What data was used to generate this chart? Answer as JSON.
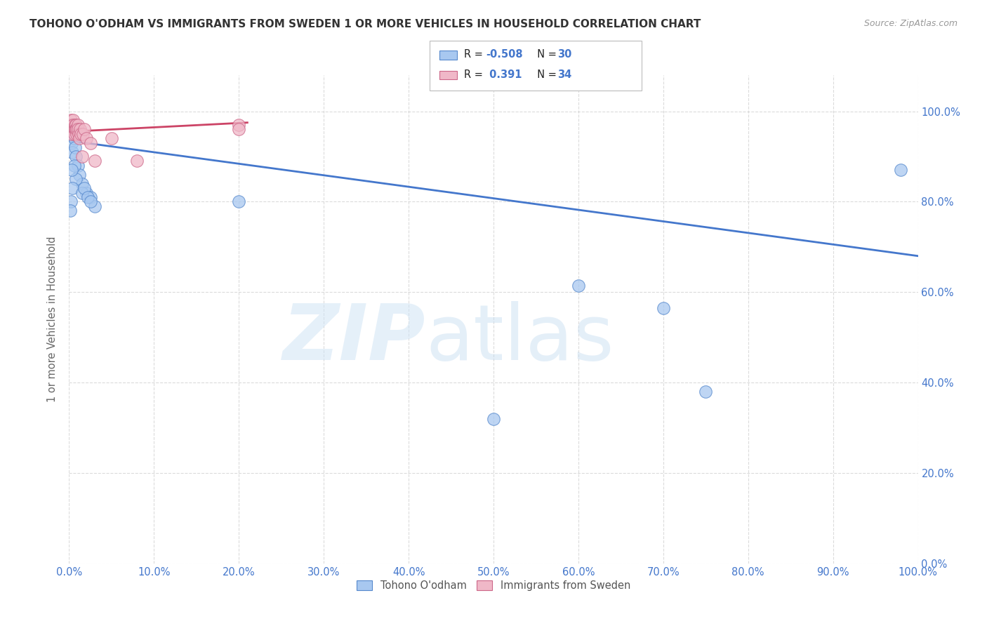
{
  "title": "TOHONO O'ODHAM VS IMMIGRANTS FROM SWEDEN 1 OR MORE VEHICLES IN HOUSEHOLD CORRELATION CHART",
  "source": "Source: ZipAtlas.com",
  "ylabel": "1 or more Vehicles in Household",
  "legend_label_blue": "Tohono O'odham",
  "legend_label_pink": "Immigrants from Sweden",
  "r_blue": -0.508,
  "n_blue": 30,
  "r_pink": 0.391,
  "n_pink": 34,
  "blue_color": "#a8c8f0",
  "pink_color": "#f0b8c8",
  "blue_edge_color": "#5588cc",
  "pink_edge_color": "#cc6688",
  "blue_line_color": "#4477cc",
  "pink_line_color": "#cc4466",
  "grid_color": "#cccccc",
  "axis_label_color": "#4477cc",
  "title_color": "#333333",
  "background_color": "#ffffff",
  "blue_scatter_x": [
    0.001,
    0.002,
    0.003,
    0.004,
    0.005,
    0.006,
    0.007,
    0.008,
    0.01,
    0.012,
    0.015,
    0.02,
    0.025,
    0.03,
    0.008,
    0.006,
    0.004,
    0.003,
    0.002,
    0.001,
    0.015,
    0.018,
    0.022,
    0.025,
    0.2,
    0.5,
    0.6,
    0.7,
    0.75,
    0.98
  ],
  "blue_scatter_y": [
    0.97,
    0.95,
    0.93,
    0.91,
    0.96,
    0.94,
    0.92,
    0.9,
    0.88,
    0.86,
    0.84,
    0.82,
    0.81,
    0.79,
    0.85,
    0.88,
    0.83,
    0.87,
    0.8,
    0.78,
    0.82,
    0.83,
    0.81,
    0.8,
    0.8,
    0.32,
    0.615,
    0.565,
    0.38,
    0.87
  ],
  "pink_scatter_x": [
    0.001,
    0.001,
    0.002,
    0.002,
    0.003,
    0.003,
    0.004,
    0.004,
    0.005,
    0.005,
    0.006,
    0.006,
    0.007,
    0.007,
    0.008,
    0.008,
    0.009,
    0.009,
    0.01,
    0.01,
    0.011,
    0.012,
    0.013,
    0.014,
    0.2,
    0.2,
    0.015,
    0.016,
    0.018,
    0.02,
    0.025,
    0.03,
    0.05,
    0.08
  ],
  "pink_scatter_y": [
    0.97,
    0.96,
    0.98,
    0.97,
    0.96,
    0.95,
    0.97,
    0.96,
    0.98,
    0.97,
    0.96,
    0.95,
    0.97,
    0.96,
    0.97,
    0.96,
    0.95,
    0.96,
    0.97,
    0.96,
    0.95,
    0.94,
    0.96,
    0.95,
    0.97,
    0.96,
    0.9,
    0.95,
    0.96,
    0.94,
    0.93,
    0.89,
    0.94,
    0.89
  ],
  "blue_line_x0": 0.0,
  "blue_line_x1": 1.0,
  "blue_line_y0": 0.935,
  "blue_line_y1": 0.68,
  "pink_line_x0": 0.0,
  "pink_line_x1": 0.21,
  "pink_line_y0": 0.955,
  "pink_line_y1": 0.975,
  "xlim": [
    0.0,
    1.0
  ],
  "ylim": [
    0.0,
    1.08
  ],
  "x_ticks": [
    0.0,
    0.1,
    0.2,
    0.3,
    0.4,
    0.5,
    0.6,
    0.7,
    0.8,
    0.9,
    1.0
  ],
  "y_ticks": [
    0.0,
    0.2,
    0.4,
    0.6,
    0.8,
    1.0
  ]
}
